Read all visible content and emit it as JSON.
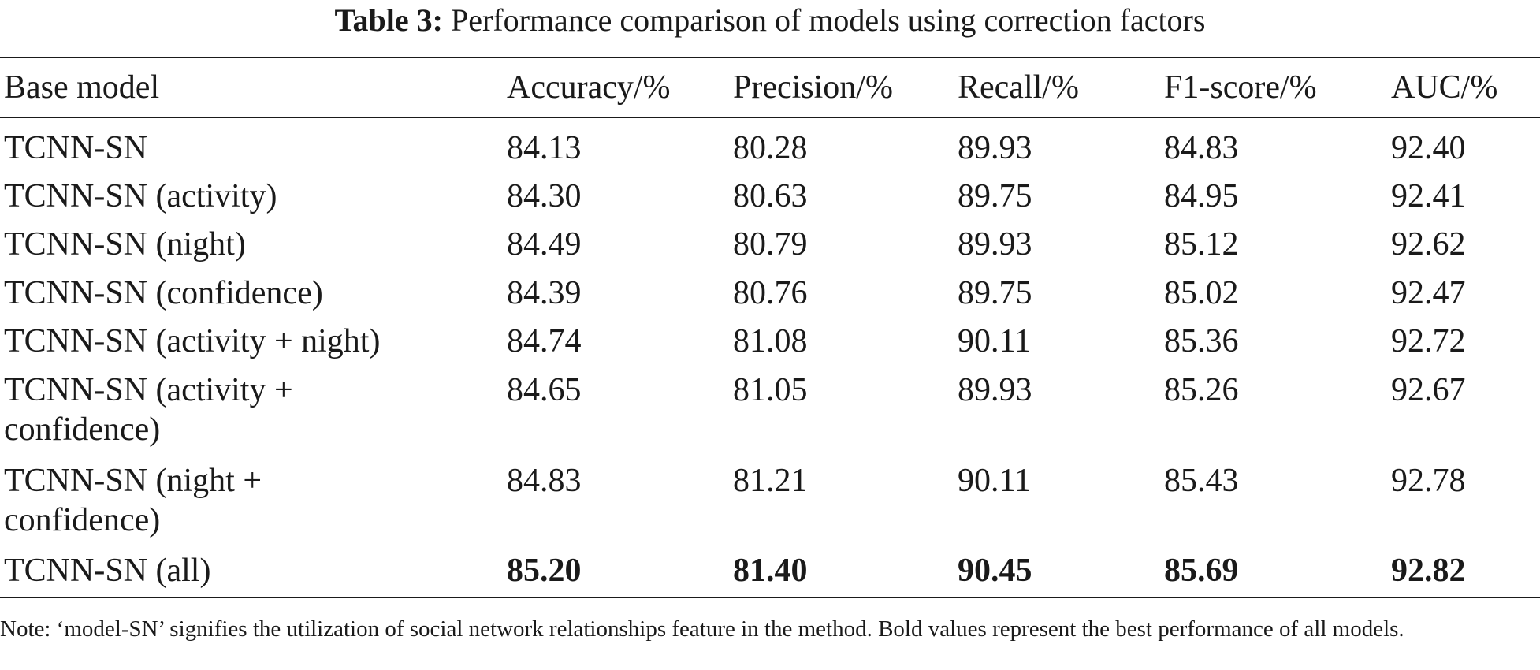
{
  "caption": {
    "label": "Table 3:",
    "text": "Performance comparison of models using correction factors"
  },
  "table": {
    "headers": [
      "Base model",
      "Accuracy/%",
      "Precision/%",
      "Recall/%",
      "F1-score/%",
      "AUC/%"
    ],
    "rows": [
      {
        "model_lines": [
          "TCNN-SN"
        ],
        "values": [
          "84.13",
          "80.28",
          "89.93",
          "84.83",
          "92.40"
        ],
        "bold": false
      },
      {
        "model_lines": [
          "TCNN-SN (activity)"
        ],
        "values": [
          "84.30",
          "80.63",
          "89.75",
          "84.95",
          "92.41"
        ],
        "bold": false
      },
      {
        "model_lines": [
          "TCNN-SN (night)"
        ],
        "values": [
          "84.49",
          "80.79",
          "89.93",
          "85.12",
          "92.62"
        ],
        "bold": false
      },
      {
        "model_lines": [
          "TCNN-SN (confidence)"
        ],
        "values": [
          "84.39",
          "80.76",
          "89.75",
          "85.02",
          "92.47"
        ],
        "bold": false
      },
      {
        "model_lines": [
          "TCNN-SN (activity + night)"
        ],
        "values": [
          "84.74",
          "81.08",
          "90.11",
          "85.36",
          "92.72"
        ],
        "bold": false
      },
      {
        "model_lines": [
          "TCNN-SN (activity +",
          "confidence)"
        ],
        "values": [
          "84.65",
          "81.05",
          "89.93",
          "85.26",
          "92.67"
        ],
        "bold": false
      },
      {
        "model_lines": [
          "TCNN-SN (night +",
          "confidence)"
        ],
        "values": [
          "84.83",
          "81.21",
          "90.11",
          "85.43",
          "92.78"
        ],
        "bold": false
      },
      {
        "model_lines": [
          "TCNN-SN (all)"
        ],
        "values": [
          "85.20",
          "81.40",
          "90.45",
          "85.69",
          "92.82"
        ],
        "bold": true
      }
    ]
  },
  "note": "Note: ‘model-SN’ signifies the utilization of social network relationships feature in the method. Bold values represent the best performance of all models."
}
